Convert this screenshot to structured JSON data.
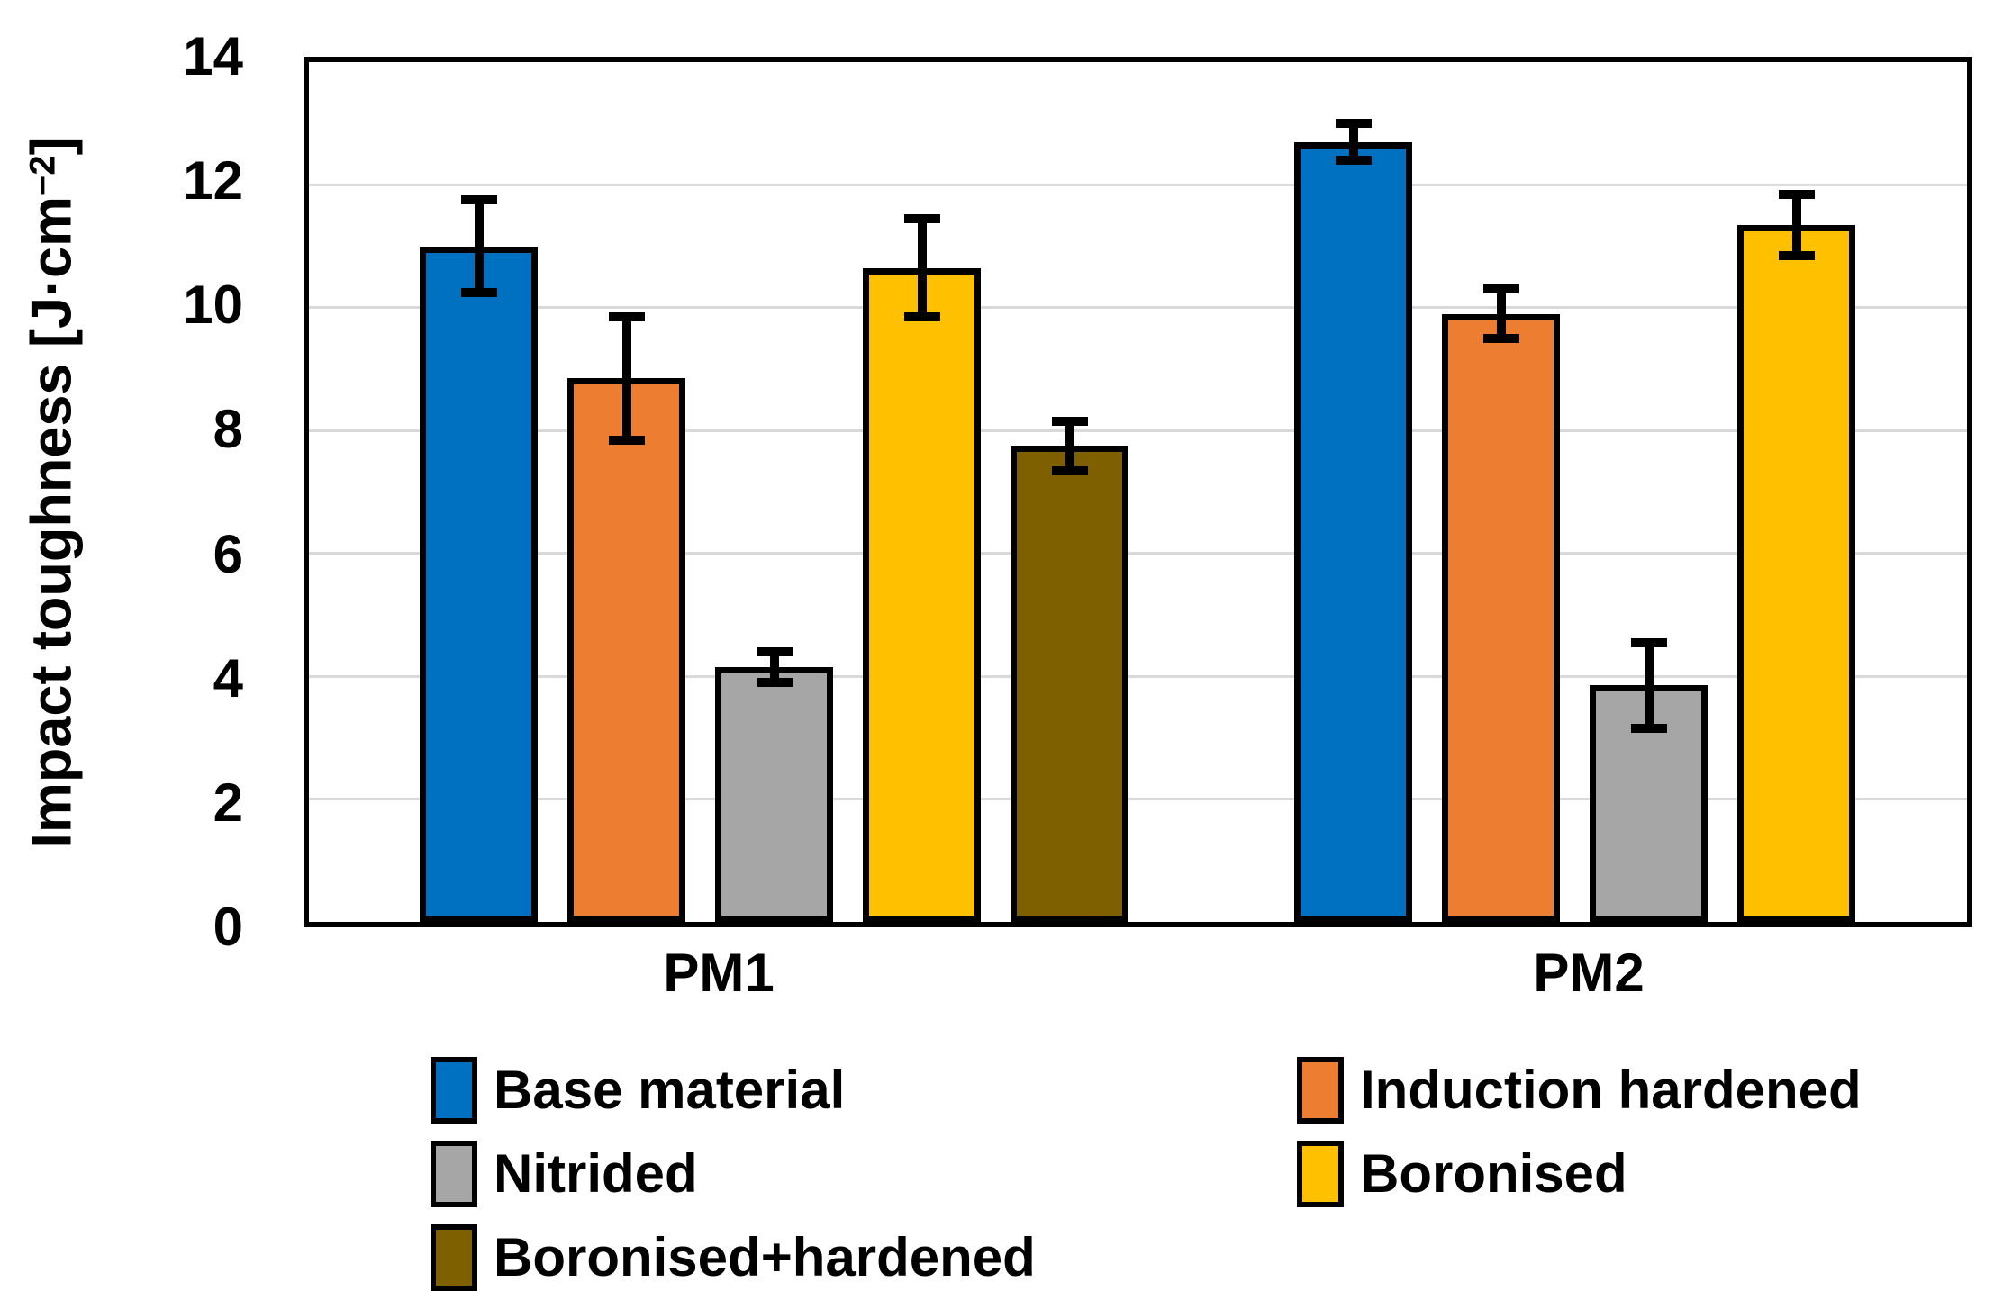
{
  "chart_data": {
    "type": "bar",
    "title": "",
    "ylabel": "Impact toughness [J·cm−2]",
    "ylabel_prefix": "Impact toughness [J·cm",
    "ylabel_sup": "−2",
    "ylabel_suffix": "]",
    "xlabel": "",
    "categories": [
      "PM1",
      "PM2"
    ],
    "ylim": [
      0,
      14
    ],
    "ytick_step": 2,
    "yticks": [
      "0",
      "2",
      "4",
      "6",
      "8",
      "10",
      "12",
      "14"
    ],
    "grid": "horizontal",
    "legend_position": "bottom",
    "gridline_color": "#D9D9D9",
    "bar_outline_color": "#000000",
    "error_bar_color": "#000000",
    "series": [
      {
        "name": "Base material",
        "color": "#0070C0",
        "values": [
          11.0,
          12.7
        ],
        "errors": [
          0.75,
          0.3
        ]
      },
      {
        "name": "Induction hardened",
        "color": "#ED7D31",
        "values": [
          8.85,
          9.9
        ],
        "errors": [
          1.0,
          0.4
        ]
      },
      {
        "name": "Nitrided",
        "color": "#A6A6A6",
        "values": [
          4.15,
          3.85
        ],
        "errors": [
          0.25,
          0.7
        ]
      },
      {
        "name": "Boronised",
        "color": "#FFC000",
        "values": [
          10.65,
          11.35
        ],
        "errors": [
          0.8,
          0.5
        ]
      },
      {
        "name": "Boronised+hardened",
        "color": "#7F6000",
        "values": [
          7.75,
          null
        ],
        "errors": [
          0.4,
          null
        ]
      }
    ]
  }
}
